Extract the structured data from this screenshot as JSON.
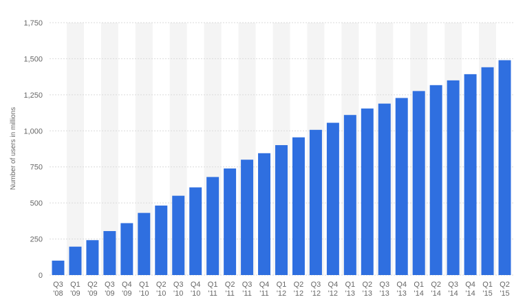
{
  "chart_data": {
    "type": "bar",
    "title": "",
    "xlabel": "",
    "ylabel": "Number of users in millions",
    "ylim": [
      0,
      1750
    ],
    "yticks": [
      0,
      250,
      500,
      750,
      1000,
      1250,
      1500,
      1750
    ],
    "ytick_labels": [
      "0",
      "250",
      "500",
      "750",
      "1,000",
      "1,250",
      "1,500",
      "1,750"
    ],
    "grid": true,
    "alternating_column_shading": true,
    "bar_color": "#2f6fe0",
    "categories": [
      [
        "Q3",
        "'08"
      ],
      [
        "Q1",
        "'09"
      ],
      [
        "Q2",
        "'09"
      ],
      [
        "Q3",
        "'09"
      ],
      [
        "Q4",
        "'09"
      ],
      [
        "Q1",
        "'10"
      ],
      [
        "Q2",
        "'10"
      ],
      [
        "Q3",
        "'10"
      ],
      [
        "Q4",
        "'10"
      ],
      [
        "Q1",
        "'11"
      ],
      [
        "Q2",
        "'11"
      ],
      [
        "Q3",
        "'11"
      ],
      [
        "Q4",
        "'11"
      ],
      [
        "Q1",
        "'12"
      ],
      [
        "Q2",
        "'12"
      ],
      [
        "Q3",
        "'12"
      ],
      [
        "Q4",
        "'12"
      ],
      [
        "Q1",
        "'13"
      ],
      [
        "Q2",
        "'13"
      ],
      [
        "Q3",
        "'13"
      ],
      [
        "Q4",
        "'13"
      ],
      [
        "Q1",
        "'14"
      ],
      [
        "Q2",
        "'14"
      ],
      [
        "Q3",
        "'14"
      ],
      [
        "Q4",
        "'14"
      ],
      [
        "Q1",
        "'15"
      ],
      [
        "Q2",
        "'15"
      ]
    ],
    "values": [
      100,
      197,
      242,
      305,
      360,
      431,
      482,
      550,
      608,
      680,
      739,
      800,
      845,
      901,
      955,
      1007,
      1056,
      1110,
      1155,
      1189,
      1228,
      1276,
      1317,
      1350,
      1393,
      1441,
      1490
    ]
  }
}
